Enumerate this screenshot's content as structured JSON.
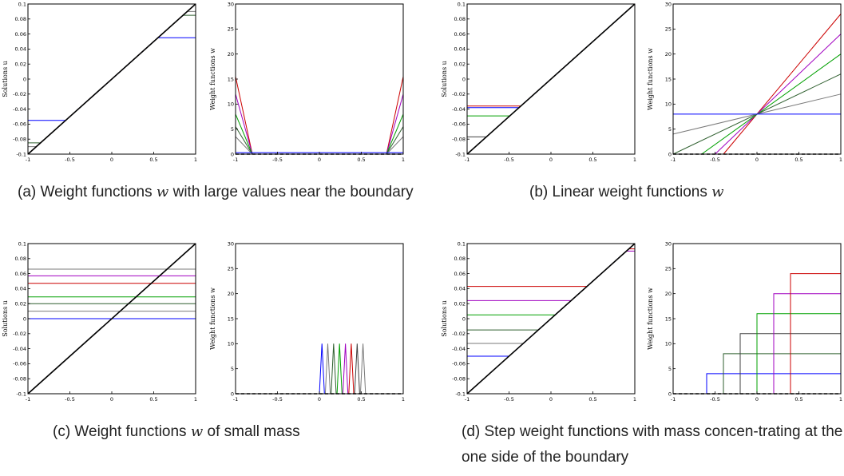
{
  "captions": [
    {
      "id": "a",
      "pre": "(a) Weight functions ",
      "var": "w",
      "post": " with large values near the boundary"
    },
    {
      "id": "b",
      "pre": "(b) Linear weight functions ",
      "var": "w",
      "post": ""
    },
    {
      "id": "c",
      "pre": "(c) Weight functions ",
      "var": "w",
      "post": " of small mass"
    },
    {
      "id": "d",
      "pre": "(d) Step weight functions with mass concen-trating at the one side of the boundary",
      "var": "",
      "post": ""
    }
  ],
  "colors": [
    "#0000ff",
    "#7a7a7a",
    "#2f5f2f",
    "#00a000",
    "#a000c0",
    "#cc0000",
    "#404040"
  ],
  "chart_data": [
    {
      "panel": "a-left",
      "type": "line",
      "ylabel": "Solutions u",
      "xlim": [
        -1,
        1
      ],
      "ylim": [
        -0.1,
        0.1
      ],
      "xticks": [
        "-1",
        "-0.5",
        "0",
        "0.5",
        "1"
      ],
      "yticks": [
        "-0.1",
        "-0.08",
        "-0.06",
        "-0.04",
        "-0.02",
        "0",
        "0.02",
        "0.04",
        "0.06",
        "0.08",
        "0.1"
      ],
      "series": [
        {
          "color": "#7a7a7a",
          "x": [
            -1,
            -0.9,
            0.9,
            1
          ],
          "y": [
            -0.09,
            -0.09,
            0.09,
            0.09
          ]
        },
        {
          "color": "#2f5f2f",
          "x": [
            -1,
            -0.85,
            0.85,
            1
          ],
          "y": [
            -0.085,
            -0.085,
            0.085,
            0.085
          ]
        },
        {
          "color": "#0000ff",
          "x": [
            -1,
            -0.55,
            0.55,
            1
          ],
          "y": [
            -0.055,
            -0.055,
            0.055,
            0.055
          ]
        },
        {
          "color": "#cc0000",
          "x": [
            -1,
            1
          ],
          "y": [
            -0.1,
            0.1
          ]
        },
        {
          "color": "#000000",
          "x": [
            -1,
            1
          ],
          "y": [
            -0.1,
            0.1
          ]
        }
      ]
    },
    {
      "panel": "a-right",
      "type": "line",
      "ylabel": "Weight functions w",
      "xlim": [
        -1,
        1
      ],
      "ylim": [
        0,
        30
      ],
      "xticks": [
        "-1",
        "-0.5",
        "0",
        "0.5",
        "1"
      ],
      "yticks": [
        "0",
        "5",
        "10",
        "15",
        "20",
        "25",
        "30"
      ],
      "series": [
        {
          "color": "#cc0000",
          "x": [
            -1,
            -0.8,
            0.8,
            1
          ],
          "y": [
            15.5,
            0,
            0,
            15.5
          ]
        },
        {
          "color": "#a000c0",
          "x": [
            -1,
            -0.8,
            0.8,
            1
          ],
          "y": [
            12,
            0,
            0,
            12
          ]
        },
        {
          "color": "#00a000",
          "x": [
            -1,
            -0.8,
            0.8,
            1
          ],
          "y": [
            8,
            0,
            0,
            8
          ]
        },
        {
          "color": "#2f5f2f",
          "x": [
            -1,
            -0.8,
            0.8,
            1
          ],
          "y": [
            5.5,
            0,
            0,
            5.5
          ]
        },
        {
          "color": "#7a7a7a",
          "x": [
            -1,
            -0.8,
            0.8,
            1
          ],
          "y": [
            3.5,
            0,
            0,
            3.5
          ]
        },
        {
          "color": "#0000ff",
          "x": [
            -1,
            1
          ],
          "y": [
            0.3,
            0.3
          ]
        },
        {
          "color": "#000000",
          "dash": true,
          "x": [
            -1,
            1
          ],
          "y": [
            0,
            0
          ]
        }
      ]
    },
    {
      "panel": "b-left",
      "type": "line",
      "ylabel": "Solutions u",
      "xlim": [
        -1,
        1
      ],
      "ylim": [
        -0.1,
        0.1
      ],
      "xticks": [
        "-1",
        "-0.5",
        "0",
        "0.5",
        "1"
      ],
      "yticks": [
        "-0.1",
        "-0.08",
        "-0.06",
        "-0.04",
        "-0.02",
        "0",
        "0.02",
        "0.04",
        "0.06",
        "0.08",
        "0.1"
      ],
      "series": [
        {
          "color": "#cc0000",
          "x": [
            -1,
            -0.36,
            1
          ],
          "y": [
            -0.036,
            -0.036,
            0.1
          ]
        },
        {
          "color": "#0000ff",
          "x": [
            -1,
            -0.38,
            1
          ],
          "y": [
            -0.038,
            -0.038,
            0.1
          ]
        },
        {
          "color": "#00a000",
          "x": [
            -1,
            -0.49,
            1
          ],
          "y": [
            -0.049,
            -0.049,
            0.1
          ]
        },
        {
          "color": "#404040",
          "x": [
            -1,
            -0.77,
            1
          ],
          "y": [
            -0.077,
            -0.077,
            0.1
          ]
        },
        {
          "color": "#000000",
          "x": [
            -1,
            1
          ],
          "y": [
            -0.1,
            0.1
          ]
        }
      ]
    },
    {
      "panel": "b-right",
      "type": "line",
      "ylabel": "Weight functions w",
      "xlim": [
        -1,
        1
      ],
      "ylim": [
        0,
        30
      ],
      "xticks": [
        "-1",
        "-0.5",
        "0",
        "0.5",
        "1"
      ],
      "yticks": [
        "0",
        "5",
        "10",
        "15",
        "20",
        "25",
        "30"
      ],
      "series": [
        {
          "color": "#cc0000",
          "x": [
            -0.4,
            1
          ],
          "y": [
            0,
            28
          ]
        },
        {
          "color": "#a000c0",
          "x": [
            -0.5,
            1
          ],
          "y": [
            0,
            24
          ]
        },
        {
          "color": "#00a000",
          "x": [
            -0.66,
            1
          ],
          "y": [
            0,
            20
          ]
        },
        {
          "color": "#2f5f2f",
          "x": [
            -1,
            1
          ],
          "y": [
            0,
            16
          ]
        },
        {
          "color": "#7a7a7a",
          "x": [
            -1,
            1
          ],
          "y": [
            4,
            12
          ]
        },
        {
          "color": "#0000ff",
          "x": [
            -1,
            1
          ],
          "y": [
            8,
            8
          ]
        },
        {
          "color": "#000000",
          "dash": true,
          "x": [
            -1,
            1
          ],
          "y": [
            0,
            0
          ]
        }
      ]
    },
    {
      "panel": "c-left",
      "type": "line",
      "ylabel": "Solutions u",
      "xlim": [
        -1,
        1
      ],
      "ylim": [
        -0.1,
        0.1
      ],
      "xticks": [
        "-1",
        "-0.5",
        "0",
        "0.5",
        "1"
      ],
      "yticks": [
        "-0.1",
        "-0.08",
        "-0.06",
        "-0.04",
        "-0.02",
        "0",
        "0.02",
        "0.04",
        "0.06",
        "0.08",
        "0.1"
      ],
      "series": [
        {
          "color": "#7a7a7a",
          "x": [
            -1,
            1
          ],
          "y": [
            0.066,
            0.066
          ]
        },
        {
          "color": "#a000c0",
          "x": [
            -1,
            1
          ],
          "y": [
            0.057,
            0.057
          ]
        },
        {
          "color": "#cc0000",
          "x": [
            -1,
            1
          ],
          "y": [
            0.047,
            0.047
          ]
        },
        {
          "color": "#00a000",
          "x": [
            -1,
            1
          ],
          "y": [
            0.029,
            0.029
          ]
        },
        {
          "color": "#2f5f2f",
          "x": [
            -1,
            1
          ],
          "y": [
            0.02,
            0.02
          ]
        },
        {
          "color": "#7a7a7a",
          "x": [
            -1,
            1
          ],
          "y": [
            0.01,
            0.01
          ]
        },
        {
          "color": "#0000ff",
          "x": [
            -1,
            1
          ],
          "y": [
            0,
            0
          ]
        },
        {
          "color": "#000000",
          "x": [
            -1,
            1
          ],
          "y": [
            -0.1,
            0.1
          ]
        }
      ]
    },
    {
      "panel": "c-right",
      "type": "line",
      "ylabel": "Weight functions w",
      "xlim": [
        -1,
        1
      ],
      "ylim": [
        0,
        30
      ],
      "xticks": [
        "-1",
        "-0.5",
        "0",
        "0.5",
        "1"
      ],
      "yticks": [
        "0",
        "5",
        "10",
        "15",
        "20",
        "25",
        "30"
      ],
      "series": [
        {
          "color": "#0000ff",
          "x": [
            -1,
            0,
            0.03,
            0.06,
            1
          ],
          "y": [
            0,
            0,
            10,
            0,
            0
          ]
        },
        {
          "color": "#7a7a7a",
          "x": [
            -1,
            0.07,
            0.1,
            0.13,
            1
          ],
          "y": [
            0,
            0,
            10,
            0,
            0
          ]
        },
        {
          "color": "#2f5f2f",
          "x": [
            -1,
            0.14,
            0.17,
            0.2,
            1
          ],
          "y": [
            0,
            0,
            10,
            0,
            0
          ]
        },
        {
          "color": "#00a000",
          "x": [
            -1,
            0.21,
            0.24,
            0.27,
            1
          ],
          "y": [
            0,
            0,
            10,
            0,
            0
          ]
        },
        {
          "color": "#a000c0",
          "x": [
            -1,
            0.28,
            0.31,
            0.34,
            1
          ],
          "y": [
            0,
            0,
            10,
            0,
            0
          ]
        },
        {
          "color": "#cc0000",
          "x": [
            -1,
            0.35,
            0.38,
            0.41,
            1
          ],
          "y": [
            0,
            0,
            10,
            0,
            0
          ]
        },
        {
          "color": "#404040",
          "x": [
            -1,
            0.42,
            0.45,
            0.48,
            1
          ],
          "y": [
            0,
            0,
            10,
            0,
            0
          ]
        },
        {
          "color": "#7a7a7a",
          "x": [
            -1,
            0.49,
            0.52,
            0.55,
            1
          ],
          "y": [
            0,
            0,
            10,
            0,
            0
          ]
        },
        {
          "color": "#000000",
          "dash": true,
          "x": [
            -1,
            1
          ],
          "y": [
            0,
            0
          ]
        }
      ]
    },
    {
      "panel": "d-left",
      "type": "line",
      "ylabel": "Solutions u",
      "xlim": [
        -1,
        1
      ],
      "ylim": [
        -0.1,
        0.1
      ],
      "xticks": [
        "-1",
        "-0.5",
        "0",
        "0.5",
        "1"
      ],
      "yticks": [
        "-0.1",
        "-0.08",
        "-0.06",
        "-0.04",
        "-0.02",
        "0",
        "0.02",
        "0.04",
        "0.06",
        "0.08",
        "0.1"
      ],
      "series": [
        {
          "color": "#cc0000",
          "x": [
            -1,
            0.43,
            0.93,
            1
          ],
          "y": [
            0.043,
            0.043,
            0.093,
            0.093
          ]
        },
        {
          "color": "#a000c0",
          "x": [
            -1,
            0.24,
            0.9,
            1
          ],
          "y": [
            0.024,
            0.024,
            0.09,
            0.09
          ]
        },
        {
          "color": "#00a000",
          "x": [
            -1,
            0.05,
            1
          ],
          "y": [
            0.005,
            0.005,
            0.1
          ]
        },
        {
          "color": "#2f5f2f",
          "x": [
            -1,
            -0.15,
            1
          ],
          "y": [
            -0.015,
            -0.015,
            0.1
          ]
        },
        {
          "color": "#7a7a7a",
          "x": [
            -1,
            -0.33,
            1
          ],
          "y": [
            -0.033,
            -0.033,
            0.1
          ]
        },
        {
          "color": "#0000ff",
          "x": [
            -1,
            -0.5,
            1
          ],
          "y": [
            -0.05,
            -0.05,
            0.1
          ]
        },
        {
          "color": "#000000",
          "x": [
            -1,
            1
          ],
          "y": [
            -0.1,
            0.1
          ]
        }
      ]
    },
    {
      "panel": "d-right",
      "type": "line",
      "ylabel": "Weight functions w",
      "xlim": [
        -1,
        1
      ],
      "ylim": [
        0,
        30
      ],
      "xticks": [
        "-1",
        "-0.5",
        "0",
        "0.5",
        "1"
      ],
      "yticks": [
        "0",
        "5",
        "10",
        "15",
        "20",
        "25",
        "30"
      ],
      "series": [
        {
          "color": "#0000ff",
          "x": [
            -1,
            -0.6,
            -0.6,
            1
          ],
          "y": [
            0,
            0,
            4,
            4
          ]
        },
        {
          "color": "#2f5f2f",
          "x": [
            -1,
            -0.4,
            -0.4,
            1
          ],
          "y": [
            0,
            0,
            8,
            8
          ]
        },
        {
          "color": "#404040",
          "x": [
            -1,
            -0.2,
            -0.2,
            1
          ],
          "y": [
            0,
            0,
            12,
            12
          ]
        },
        {
          "color": "#00a000",
          "x": [
            -1,
            0,
            0,
            1
          ],
          "y": [
            0,
            0,
            16,
            16
          ]
        },
        {
          "color": "#a000c0",
          "x": [
            -1,
            0.2,
            0.2,
            1
          ],
          "y": [
            0,
            0,
            20,
            20
          ]
        },
        {
          "color": "#cc0000",
          "x": [
            -1,
            0.4,
            0.4,
            1
          ],
          "y": [
            0,
            0,
            24,
            24
          ]
        },
        {
          "color": "#000000",
          "dash": true,
          "x": [
            -1,
            1
          ],
          "y": [
            0,
            0
          ]
        }
      ]
    }
  ]
}
